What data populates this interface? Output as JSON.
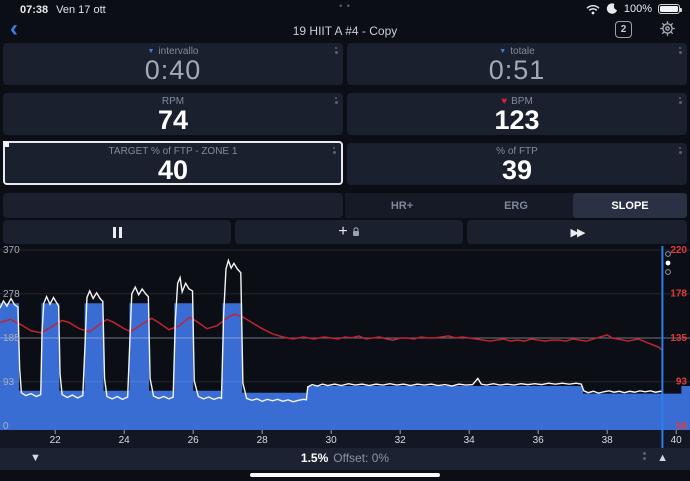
{
  "status_bar": {
    "time": "07:38",
    "date": "Ven 17 ott",
    "battery_pct": "100%"
  },
  "nav": {
    "title": "19 HIIT A #4 - Copy",
    "badge": "2"
  },
  "icons": {
    "back": "‹",
    "collapse_triangle": "▼",
    "heart": "♥",
    "plus": "+",
    "skip_forward": "▶▶",
    "decrease": "▼",
    "increase": "▲",
    "multitask_dots": "• •"
  },
  "tiles": [
    {
      "label": "intervallo",
      "value": "0:40"
    },
    {
      "label": "totale",
      "value": "0:51"
    },
    {
      "label": "RPM",
      "value": "74"
    },
    {
      "label": "BPM",
      "value": "123"
    },
    {
      "label": "TARGET % of FTP - ZONE 1",
      "value": "40"
    },
    {
      "label": "% of FTP",
      "value": "39"
    }
  ],
  "modes": [
    {
      "label": "HR+",
      "active": false
    },
    {
      "label": "ERG",
      "active": false
    },
    {
      "label": "SLOPE",
      "active": true
    }
  ],
  "bottom_bar": {
    "slope": "1.5%",
    "offset": "Offset: 0%"
  },
  "chart_data": {
    "type": "area+line",
    "x_range": [
      20.4,
      40.4
    ],
    "x_ticks": [
      22,
      24,
      26,
      28,
      30,
      32,
      34,
      36,
      38,
      40
    ],
    "power_axis": {
      "range": [
        0,
        370
      ],
      "ticks": [
        0,
        93,
        185,
        278,
        370
      ],
      "color": "#a6aebd"
    },
    "hr_axis": {
      "range": [
        50,
        220
      ],
      "ticks": [
        50,
        93,
        135,
        178,
        220
      ],
      "color": "#e23b3b"
    },
    "gridline_emphasis": 185,
    "cursor_x": 39.6,
    "colors": {
      "profile": "#3a6dd4",
      "power_line": "#f2f4f6",
      "hr_line": "#c02433",
      "cursor": "#2e7de8",
      "axis_strip": "#131724",
      "tick_text": "#d8dce2"
    },
    "profile_segments": [
      [
        20.4,
        20.95,
        258
      ],
      [
        20.95,
        21.6,
        74
      ],
      [
        21.6,
        22.12,
        258
      ],
      [
        22.12,
        22.85,
        74
      ],
      [
        22.85,
        23.4,
        258
      ],
      [
        23.4,
        24.15,
        74
      ],
      [
        24.15,
        24.72,
        258
      ],
      [
        24.72,
        25.45,
        74
      ],
      [
        25.45,
        26.0,
        258
      ],
      [
        26.0,
        26.85,
        74
      ],
      [
        26.85,
        27.42,
        258
      ],
      [
        27.42,
        29.3,
        70
      ],
      [
        29.3,
        37.3,
        84
      ],
      [
        37.3,
        40.15,
        68
      ],
      [
        40.15,
        40.4,
        84
      ]
    ],
    "power_series": [
      [
        20.4,
        248
      ],
      [
        20.5,
        263
      ],
      [
        20.6,
        252
      ],
      [
        20.72,
        268
      ],
      [
        20.82,
        255
      ],
      [
        20.92,
        250
      ],
      [
        20.97,
        120
      ],
      [
        21.02,
        70
      ],
      [
        21.15,
        64
      ],
      [
        21.3,
        68
      ],
      [
        21.45,
        62
      ],
      [
        21.58,
        66
      ],
      [
        21.62,
        200
      ],
      [
        21.67,
        258
      ],
      [
        21.75,
        272
      ],
      [
        21.85,
        256
      ],
      [
        21.95,
        270
      ],
      [
        22.05,
        258
      ],
      [
        22.1,
        252
      ],
      [
        22.14,
        110
      ],
      [
        22.2,
        66
      ],
      [
        22.35,
        60
      ],
      [
        22.5,
        65
      ],
      [
        22.65,
        59
      ],
      [
        22.8,
        64
      ],
      [
        22.87,
        180
      ],
      [
        22.92,
        270
      ],
      [
        23.0,
        284
      ],
      [
        23.1,
        268
      ],
      [
        23.2,
        280
      ],
      [
        23.3,
        268
      ],
      [
        23.38,
        262
      ],
      [
        23.43,
        100
      ],
      [
        23.5,
        62
      ],
      [
        23.65,
        57
      ],
      [
        23.8,
        62
      ],
      [
        23.95,
        56
      ],
      [
        24.1,
        61
      ],
      [
        24.17,
        190
      ],
      [
        24.22,
        278
      ],
      [
        24.32,
        292
      ],
      [
        24.42,
        276
      ],
      [
        24.52,
        288
      ],
      [
        24.62,
        278
      ],
      [
        24.7,
        272
      ],
      [
        24.75,
        100
      ],
      [
        24.85,
        63
      ],
      [
        25.0,
        58
      ],
      [
        25.15,
        62
      ],
      [
        25.3,
        57
      ],
      [
        25.42,
        61
      ],
      [
        25.48,
        220
      ],
      [
        25.55,
        300
      ],
      [
        25.62,
        312
      ],
      [
        25.68,
        282
      ],
      [
        25.78,
        300
      ],
      [
        25.88,
        288
      ],
      [
        25.98,
        284
      ],
      [
        26.03,
        95
      ],
      [
        26.15,
        62
      ],
      [
        26.3,
        57
      ],
      [
        26.45,
        61
      ],
      [
        26.6,
        56
      ],
      [
        26.75,
        60
      ],
      [
        26.82,
        58
      ],
      [
        26.88,
        230
      ],
      [
        26.95,
        330
      ],
      [
        27.02,
        348
      ],
      [
        27.1,
        332
      ],
      [
        27.18,
        342
      ],
      [
        27.28,
        330
      ],
      [
        27.38,
        322
      ],
      [
        27.44,
        90
      ],
      [
        27.55,
        58
      ],
      [
        27.7,
        54
      ],
      [
        27.85,
        57
      ],
      [
        28.0,
        52
      ],
      [
        28.15,
        56
      ],
      [
        28.3,
        53
      ],
      [
        28.45,
        56
      ],
      [
        28.6,
        52
      ],
      [
        28.75,
        55
      ],
      [
        28.9,
        51
      ],
      [
        29.05,
        54
      ],
      [
        29.2,
        56
      ],
      [
        29.28,
        55
      ],
      [
        29.32,
        82
      ],
      [
        29.45,
        87
      ],
      [
        29.6,
        84
      ],
      [
        29.75,
        88
      ],
      [
        29.9,
        85
      ],
      [
        30.1,
        88
      ],
      [
        30.3,
        85
      ],
      [
        30.5,
        89
      ],
      [
        30.7,
        86
      ],
      [
        30.9,
        88
      ],
      [
        31.1,
        85
      ],
      [
        31.3,
        88
      ],
      [
        31.5,
        86
      ],
      [
        31.7,
        89
      ],
      [
        31.9,
        86
      ],
      [
        32.1,
        88
      ],
      [
        32.3,
        85
      ],
      [
        32.5,
        88
      ],
      [
        32.7,
        86
      ],
      [
        32.9,
        88
      ],
      [
        33.1,
        85
      ],
      [
        33.3,
        87
      ],
      [
        33.5,
        84
      ],
      [
        33.7,
        88
      ],
      [
        33.9,
        86
      ],
      [
        34.1,
        87
      ],
      [
        34.25,
        100
      ],
      [
        34.35,
        88
      ],
      [
        34.5,
        86
      ],
      [
        34.7,
        89
      ],
      [
        34.9,
        86
      ],
      [
        35.1,
        88
      ],
      [
        35.3,
        86
      ],
      [
        35.5,
        89
      ],
      [
        35.7,
        87
      ],
      [
        35.9,
        89
      ],
      [
        36.1,
        87
      ],
      [
        36.3,
        90
      ],
      [
        36.5,
        88
      ],
      [
        36.7,
        90
      ],
      [
        36.9,
        88
      ],
      [
        37.1,
        90
      ],
      [
        37.25,
        88
      ],
      [
        37.32,
        74
      ],
      [
        37.45,
        70
      ],
      [
        37.6,
        73
      ],
      [
        37.75,
        69
      ],
      [
        37.9,
        72
      ],
      [
        38.05,
        74
      ],
      [
        38.2,
        71
      ],
      [
        38.35,
        73
      ],
      [
        38.5,
        70
      ],
      [
        38.65,
        73
      ],
      [
        38.8,
        71
      ],
      [
        38.95,
        74
      ],
      [
        39.1,
        72
      ],
      [
        39.25,
        74
      ],
      [
        39.4,
        71
      ],
      [
        39.55,
        73
      ],
      [
        39.6,
        72
      ]
    ],
    "hr_series": [
      [
        20.4,
        150
      ],
      [
        20.7,
        153
      ],
      [
        21.0,
        148
      ],
      [
        21.3,
        142
      ],
      [
        21.6,
        140
      ],
      [
        21.9,
        146
      ],
      [
        22.2,
        152
      ],
      [
        22.4,
        150
      ],
      [
        22.7,
        144
      ],
      [
        23.0,
        141
      ],
      [
        23.2,
        146
      ],
      [
        23.5,
        153
      ],
      [
        23.7,
        150
      ],
      [
        24.0,
        144
      ],
      [
        24.2,
        141
      ],
      [
        24.5,
        148
      ],
      [
        24.8,
        154
      ],
      [
        25.0,
        150
      ],
      [
        25.3,
        143
      ],
      [
        25.6,
        147
      ],
      [
        25.9,
        155
      ],
      [
        26.1,
        151
      ],
      [
        26.4,
        144
      ],
      [
        26.7,
        147
      ],
      [
        27.0,
        155
      ],
      [
        27.2,
        158
      ],
      [
        27.4,
        156
      ],
      [
        27.7,
        150
      ],
      [
        28.0,
        144
      ],
      [
        28.3,
        139
      ],
      [
        28.6,
        136
      ],
      [
        28.9,
        134
      ],
      [
        29.2,
        136
      ],
      [
        29.5,
        134
      ],
      [
        29.8,
        136
      ],
      [
        30.0,
        135
      ],
      [
        30.2,
        134
      ],
      [
        30.4,
        136
      ],
      [
        30.6,
        135
      ],
      [
        30.8,
        137
      ],
      [
        31.0,
        134
      ],
      [
        31.2,
        135
      ],
      [
        31.4,
        136
      ],
      [
        31.6,
        134
      ],
      [
        31.8,
        133
      ],
      [
        32.0,
        135
      ],
      [
        32.2,
        135
      ],
      [
        32.4,
        134
      ],
      [
        32.6,
        136
      ],
      [
        32.8,
        135
      ],
      [
        33.0,
        135
      ],
      [
        33.2,
        136
      ],
      [
        33.4,
        137
      ],
      [
        33.6,
        135
      ],
      [
        33.8,
        136
      ],
      [
        34.0,
        135
      ],
      [
        34.2,
        134
      ],
      [
        34.4,
        133
      ],
      [
        34.6,
        132
      ],
      [
        34.8,
        133
      ],
      [
        35.0,
        134
      ],
      [
        35.2,
        132
      ],
      [
        35.4,
        133
      ],
      [
        35.6,
        132
      ],
      [
        35.8,
        134
      ],
      [
        36.0,
        133
      ],
      [
        36.2,
        132
      ],
      [
        36.4,
        133
      ],
      [
        36.6,
        133
      ],
      [
        36.8,
        132
      ],
      [
        37.0,
        134
      ],
      [
        37.2,
        133
      ],
      [
        37.4,
        132
      ],
      [
        37.6,
        134
      ],
      [
        37.8,
        136
      ],
      [
        38.0,
        138
      ],
      [
        38.15,
        135
      ],
      [
        38.3,
        134
      ],
      [
        38.45,
        133
      ],
      [
        38.6,
        132
      ],
      [
        38.75,
        133
      ],
      [
        38.9,
        134
      ],
      [
        39.05,
        132
      ],
      [
        39.2,
        130
      ],
      [
        39.35,
        128
      ],
      [
        39.5,
        126
      ],
      [
        39.6,
        123
      ]
    ]
  }
}
